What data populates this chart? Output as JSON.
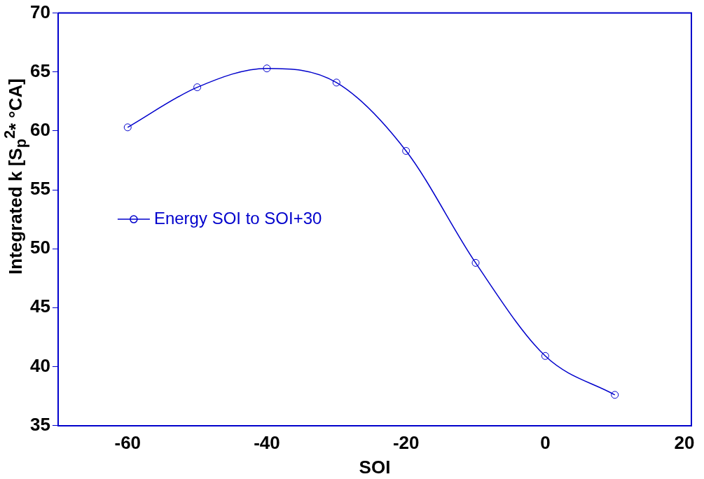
{
  "chart_data": {
    "type": "line",
    "xlabel": "SOI",
    "ylabel": "Integrated k [S$_{p}$$^{2}$* °CA]",
    "x": [
      -60,
      -50,
      -40,
      -30,
      -20,
      -10,
      0,
      10
    ],
    "series": [
      {
        "name": "Energy SOI to SOI+30",
        "color": "#0000cc",
        "values": [
          60.3,
          63.7,
          65.3,
          64.1,
          58.3,
          48.8,
          40.9,
          37.6
        ]
      }
    ],
    "xlim": [
      -70,
      21
    ],
    "xticks": [
      -60,
      -40,
      -20,
      0,
      20
    ],
    "ylim": [
      35,
      70
    ],
    "yticks": [
      35,
      40,
      45,
      50,
      55,
      60,
      65,
      70
    ],
    "grid": false,
    "legend": "left",
    "marker": "circle",
    "line_style": "solid"
  }
}
